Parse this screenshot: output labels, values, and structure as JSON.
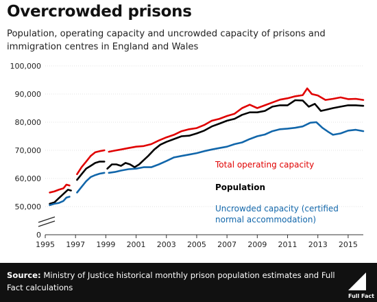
{
  "header": {
    "title": "Overcrowded prisons",
    "subtitle": "Population, operating capacity and uncrowded capacity of prisons and immigration centres in England and Wales"
  },
  "footer": {
    "source_label": "Source:",
    "source_text": "Ministry of Justice historical monthly prison population estimates and Full Fact calculations",
    "logo_text": "Full Fact"
  },
  "chart_data": {
    "type": "line",
    "title": "Overcrowded prisons",
    "subtitle": "Population, operating capacity and uncrowded capacity of prisons and immigration centres in England and Wales",
    "xlabel": "",
    "ylabel": "",
    "xlim": [
      1995,
      2016
    ],
    "ylim": [
      0,
      100000
    ],
    "axis_break": true,
    "x_ticks": [
      1995,
      1997,
      1999,
      2001,
      2003,
      2005,
      2007,
      2009,
      2011,
      2013,
      2015
    ],
    "x_tick_labels": [
      "1995",
      "1997",
      "1999",
      "2001",
      "2003",
      "2005",
      "2007",
      "2009",
      "2011",
      "2013",
      "2015"
    ],
    "y_ticks": [
      0,
      50000,
      60000,
      70000,
      80000,
      90000,
      100000
    ],
    "y_tick_labels": [
      "0",
      "50,000",
      "60,000",
      "70,000",
      "80,000",
      "90,000",
      "100,000"
    ],
    "grid": true,
    "legend": "inline labels, right of lines",
    "series": [
      {
        "name": "Total operating capacity",
        "color": "#e00000",
        "segments": [
          [
            [
              1995.3,
              55000
            ],
            [
              1995.6,
              55400
            ],
            [
              1995.9,
              56000
            ],
            [
              1996.2,
              56500
            ],
            [
              1996.4,
              57800
            ],
            [
              1996.6,
              57500
            ]
          ],
          [
            [
              1997.1,
              61500
            ],
            [
              1997.4,
              64000
            ],
            [
              1997.7,
              66000
            ],
            [
              1998.0,
              68000
            ],
            [
              1998.3,
              69300
            ],
            [
              1998.6,
              69700
            ],
            [
              1998.9,
              70000
            ]
          ],
          [
            [
              1999.2,
              69500
            ],
            [
              1999.6,
              69900
            ],
            [
              2000.0,
              70300
            ],
            [
              2000.5,
              70800
            ],
            [
              2001.0,
              71300
            ],
            [
              2001.5,
              71500
            ],
            [
              2002.0,
              72200
            ],
            [
              2002.5,
              73500
            ],
            [
              2003.0,
              74600
            ],
            [
              2003.5,
              75500
            ],
            [
              2004.0,
              76800
            ],
            [
              2004.5,
              77500
            ],
            [
              2005.0,
              77900
            ],
            [
              2005.5,
              79000
            ],
            [
              2006.0,
              80500
            ],
            [
              2006.5,
              81200
            ],
            [
              2007.0,
              82200
            ],
            [
              2007.5,
              83000
            ],
            [
              2008.0,
              85000
            ],
            [
              2008.5,
              86200
            ],
            [
              2009.0,
              85000
            ],
            [
              2009.5,
              86000
            ],
            [
              2010.0,
              87000
            ],
            [
              2010.5,
              88000
            ],
            [
              2011.0,
              88500
            ],
            [
              2011.5,
              89200
            ],
            [
              2012.0,
              89600
            ],
            [
              2012.3,
              92000
            ],
            [
              2012.6,
              90000
            ],
            [
              2013.0,
              89500
            ],
            [
              2013.5,
              87900
            ],
            [
              2014.0,
              88300
            ],
            [
              2014.5,
              88800
            ],
            [
              2015.0,
              88200
            ],
            [
              2015.5,
              88300
            ],
            [
              2016.0,
              87900
            ]
          ]
        ]
      },
      {
        "name": "Population",
        "color": "#000000",
        "segments": [
          [
            [
              1995.3,
              51000
            ],
            [
              1995.6,
              51500
            ],
            [
              1995.9,
              53000
            ],
            [
              1996.2,
              54500
            ],
            [
              1996.5,
              56000
            ],
            [
              1996.7,
              55700
            ]
          ],
          [
            [
              1997.1,
              59500
            ],
            [
              1997.4,
              61500
            ],
            [
              1997.7,
              63500
            ],
            [
              1998.0,
              64500
            ],
            [
              1998.3,
              65500
            ],
            [
              1998.6,
              66000
            ],
            [
              1998.9,
              66000
            ]
          ],
          [
            [
              1999.1,
              63500
            ],
            [
              1999.4,
              65000
            ],
            [
              1999.7,
              65000
            ],
            [
              2000.0,
              64500
            ],
            [
              2000.3,
              65500
            ],
            [
              2000.6,
              65000
            ],
            [
              2000.9,
              64000
            ],
            [
              2001.2,
              65000
            ],
            [
              2001.5,
              66500
            ],
            [
              2001.8,
              68000
            ],
            [
              2002.2,
              70300
            ],
            [
              2002.6,
              72000
            ],
            [
              2003.0,
              73000
            ],
            [
              2003.5,
              74000
            ],
            [
              2004.0,
              75000
            ],
            [
              2004.5,
              75200
            ],
            [
              2005.0,
              76000
            ],
            [
              2005.5,
              77000
            ],
            [
              2006.0,
              78500
            ],
            [
              2006.5,
              79500
            ],
            [
              2007.0,
              80500
            ],
            [
              2007.5,
              81200
            ],
            [
              2008.0,
              82600
            ],
            [
              2008.5,
              83500
            ],
            [
              2009.0,
              83500
            ],
            [
              2009.5,
              84000
            ],
            [
              2010.0,
              85500
            ],
            [
              2010.5,
              86000
            ],
            [
              2011.0,
              86000
            ],
            [
              2011.5,
              87800
            ],
            [
              2012.0,
              87700
            ],
            [
              2012.4,
              85500
            ],
            [
              2012.8,
              86500
            ],
            [
              2013.2,
              84000
            ],
            [
              2013.6,
              84500
            ],
            [
              2014.0,
              85000
            ],
            [
              2014.5,
              85500
            ],
            [
              2015.0,
              86000
            ],
            [
              2015.5,
              86000
            ],
            [
              2016.0,
              85800
            ]
          ]
        ]
      },
      {
        "name": "Uncrowded capacity (certified normal accommodation)",
        "color": "#1166aa",
        "segments": [
          [
            [
              1995.3,
              50500
            ],
            [
              1995.6,
              51000
            ],
            [
              1995.9,
              51300
            ],
            [
              1996.2,
              52000
            ],
            [
              1996.4,
              53200
            ],
            [
              1996.6,
              53500
            ]
          ],
          [
            [
              1997.1,
              55000
            ],
            [
              1997.4,
              57000
            ],
            [
              1997.7,
              59000
            ],
            [
              1998.0,
              60500
            ],
            [
              1998.3,
              61200
            ],
            [
              1998.6,
              61700
            ],
            [
              1998.9,
              62000
            ]
          ],
          [
            [
              1999.2,
              62000
            ],
            [
              1999.6,
              62300
            ],
            [
              2000.0,
              62800
            ],
            [
              2000.5,
              63300
            ],
            [
              2001.0,
              63500
            ],
            [
              2001.5,
              64000
            ],
            [
              2002.0,
              64000
            ],
            [
              2002.5,
              65000
            ],
            [
              2003.0,
              66200
            ],
            [
              2003.5,
              67500
            ],
            [
              2004.0,
              68000
            ],
            [
              2004.5,
              68500
            ],
            [
              2005.0,
              69000
            ],
            [
              2005.5,
              69700
            ],
            [
              2006.0,
              70300
            ],
            [
              2006.5,
              70800
            ],
            [
              2007.0,
              71300
            ],
            [
              2007.5,
              72200
            ],
            [
              2008.0,
              72800
            ],
            [
              2008.5,
              74000
            ],
            [
              2009.0,
              75000
            ],
            [
              2009.5,
              75600
            ],
            [
              2010.0,
              76800
            ],
            [
              2010.5,
              77500
            ],
            [
              2011.0,
              77700
            ],
            [
              2011.5,
              78000
            ],
            [
              2012.0,
              78500
            ],
            [
              2012.5,
              79800
            ],
            [
              2012.9,
              80000
            ],
            [
              2013.3,
              78000
            ],
            [
              2013.7,
              76500
            ],
            [
              2014.0,
              75500
            ],
            [
              2014.5,
              76000
            ],
            [
              2015.0,
              77000
            ],
            [
              2015.5,
              77300
            ],
            [
              2016.0,
              76800
            ]
          ]
        ]
      }
    ]
  }
}
